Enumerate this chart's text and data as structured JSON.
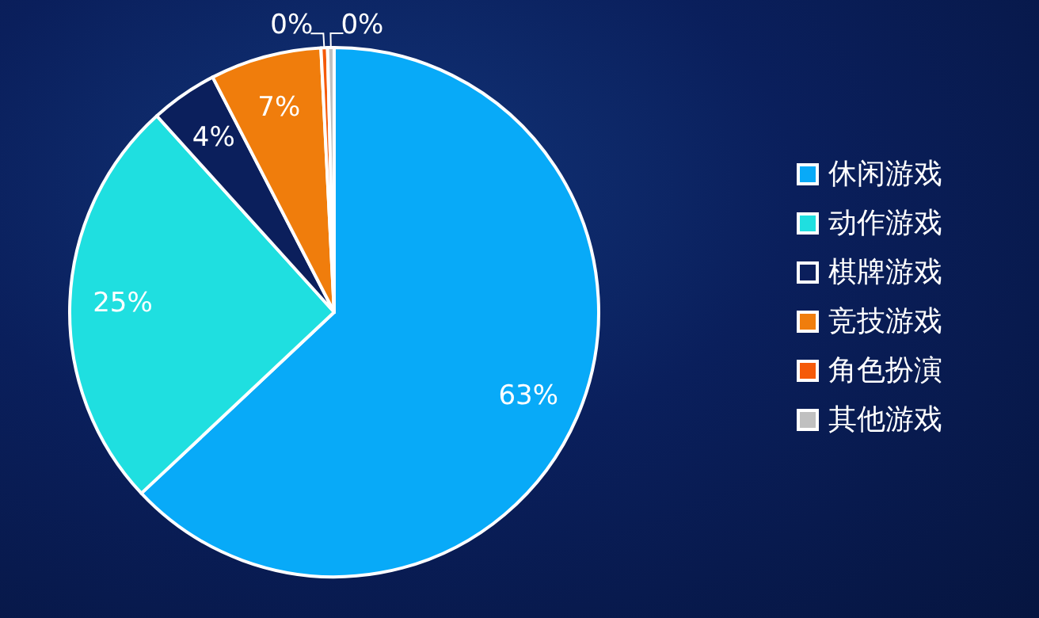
{
  "chart_data": {
    "type": "pie",
    "categories": [
      "休闲游戏",
      "动作游戏",
      "棋牌游戏",
      "竞技游戏",
      "角色扮演",
      "其他游戏"
    ],
    "values": [
      63.0,
      25.3,
      4.1,
      6.8,
      0.4,
      0.4
    ],
    "value_labels": [
      "63%",
      "25%",
      "4%",
      "7%",
      "0%",
      "0%"
    ],
    "colors": [
      "#08aaf8",
      "#1fdfe0",
      "#0b1f5c",
      "#f07d0c",
      "#f55a0a",
      "#c0c0c0"
    ],
    "legend": "right"
  }
}
